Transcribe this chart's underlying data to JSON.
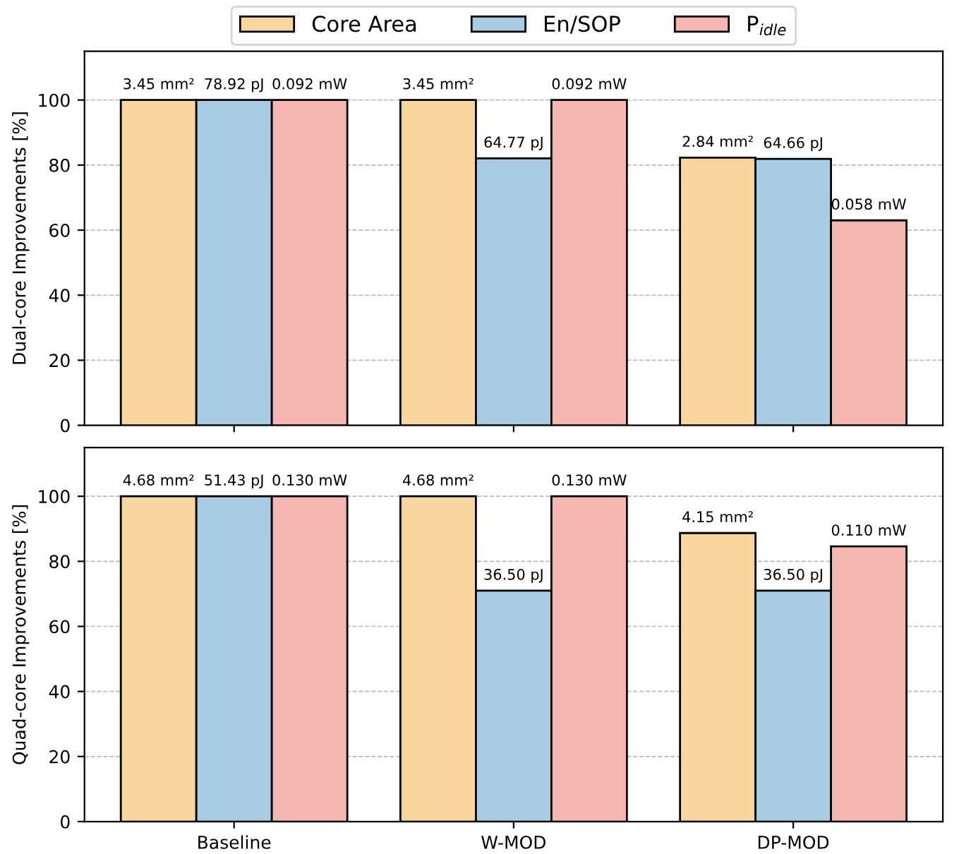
{
  "chart_data": [
    {
      "type": "bar",
      "categories": [
        null,
        null,
        null
      ],
      "ylabel": "Dual-core Improvements [%]",
      "ylim": [
        0,
        115
      ],
      "yticks": [
        0,
        20,
        40,
        60,
        80,
        100
      ],
      "grid": "y",
      "legend": "top",
      "tick_labels": "y",
      "series": [
        {
          "name": "Core Area",
          "color": "#f9d69e",
          "values": [
            100,
            100,
            82.3
          ]
        },
        {
          "name": "En/SOP",
          "color": "#a9cce3",
          "values": [
            100,
            82.07,
            81.9
          ]
        },
        {
          "name": "P$_{idle}$",
          "color": "#f5b7b1",
          "values": [
            100,
            100,
            63.0
          ]
        }
      ],
      "annotations": [
        {
          "text": "3.45 mm²",
          "y": 100
        },
        {
          "text": "3.45 mm²",
          "y": 100
        },
        {
          "text": "2.84 mm²",
          "y": 82.3
        },
        {
          "text": "78.92 pJ",
          "y": 100
        },
        {
          "text": "64.77 pJ",
          "y": 82.07
        },
        {
          "text": "64.66 pJ",
          "y": 81.9
        },
        {
          "text": "0.092 mW",
          "y": 100
        },
        {
          "text": "0.092 mW",
          "y": 100
        },
        {
          "text": "0.058 mW",
          "y": 63.0
        }
      ]
    },
    {
      "type": "bar",
      "categories": [
        "Baseline",
        "W-MOD",
        "DP-MOD"
      ],
      "ylabel": "Quad-core Improvements [%]",
      "ylim": [
        0,
        115
      ],
      "yticks": [
        0,
        20,
        40,
        60,
        80,
        100
      ],
      "grid": "y",
      "series": [
        {
          "color": "#f9d69e",
          "values": [
            100,
            100,
            88.7
          ]
        },
        {
          "color": "#a9cce3",
          "values": [
            100,
            71.0,
            71.0
          ]
        },
        {
          "color": "#f5b7b1",
          "values": [
            100,
            100,
            84.6
          ]
        }
      ],
      "annotations": [
        {
          "text": "4.68 mm²",
          "y": 100
        },
        {
          "text": "4.68 mm²",
          "y": 100
        },
        {
          "text": "4.15 mm²",
          "y": 88.7
        },
        {
          "text": "51.43 pJ",
          "y": 100
        },
        {
          "text": "36.50 pJ",
          "y": 71.0
        },
        {
          "text": "36.50 pJ",
          "y": 71.0
        },
        {
          "text": "0.130 mW",
          "y": 100
        },
        {
          "text": "0.130 mW",
          "y": 100
        },
        {
          "text": "0.110 mW",
          "y": 84.6
        }
      ]
    }
  ]
}
